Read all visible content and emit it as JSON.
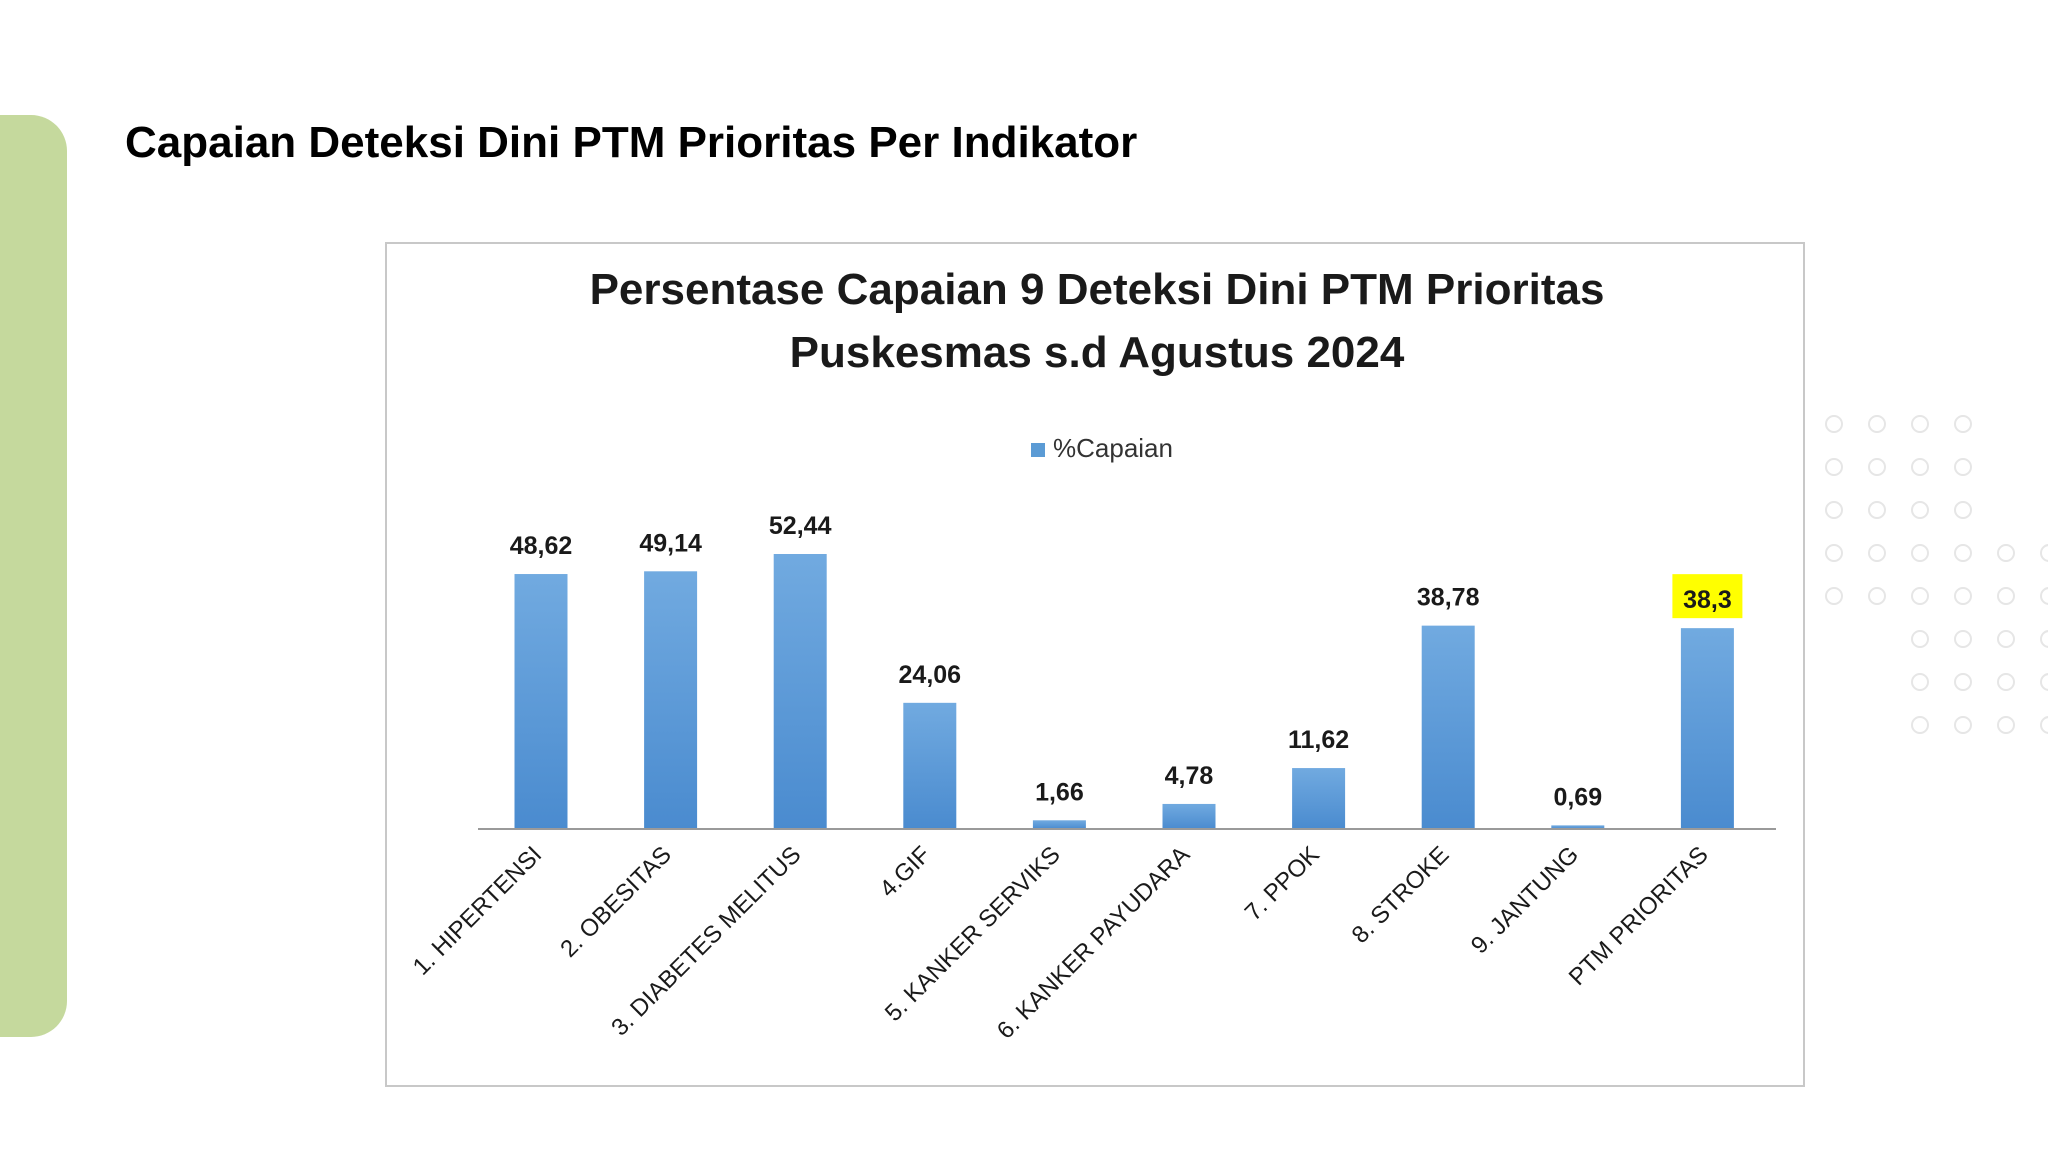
{
  "slide": {
    "title": "Capaian Deteksi Dini PTM Prioritas Per Indikator"
  },
  "colors": {
    "accent": "#c5d99d",
    "bar": "#5b9bd5",
    "highlight": "#ffff00"
  },
  "chart_data": {
    "type": "bar",
    "title": "Persentase Capaian 9 Deteksi Dini PTM Prioritas",
    "subtitle": "Puskesmas s.d Agustus 2024",
    "xlabel": "",
    "ylabel": "",
    "legend": "top-center",
    "grid": false,
    "ylim": [
      0,
      60
    ],
    "categories": [
      "1. HIPERTENSI",
      "2. OBESITAS",
      "3. DIABETES MELITUS",
      "4.GIF",
      "5. KANKER SERVIKS",
      "6. KANKER PAYUDARA",
      "7. PPOK",
      "8. STROKE",
      "9. JANTUNG",
      "PTM PRIORITAS"
    ],
    "series": [
      {
        "name": "%Capaian",
        "values": [
          48.62,
          49.14,
          52.44,
          24.06,
          1.66,
          4.78,
          11.62,
          38.78,
          0.69,
          38.3
        ]
      }
    ],
    "data_labels": [
      "48,62",
      "49,14",
      "52,44",
      "24,06",
      "1,66",
      "4,78",
      "11,62",
      "38,78",
      "0,69",
      "38,3"
    ],
    "highlighted_category": "PTM PRIORITAS"
  }
}
